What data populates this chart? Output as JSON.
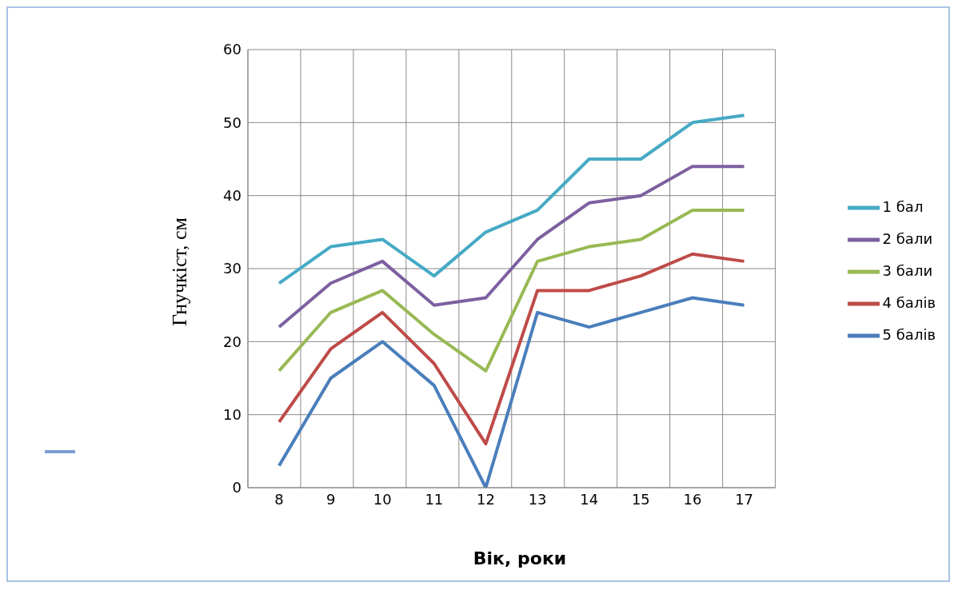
{
  "chart_data": {
    "type": "line",
    "xlabel": "Вік, роки",
    "ylabel": "Гнучкіст, см",
    "categories": [
      "8",
      "9",
      "10",
      "11",
      "12",
      "13",
      "14",
      "15",
      "16",
      "17"
    ],
    "ylim": [
      0,
      60
    ],
    "yticks": [
      0,
      10,
      20,
      30,
      40,
      50,
      60
    ],
    "grid": true,
    "legend": "right",
    "marker": "none",
    "line_style": "solid",
    "series": [
      {
        "name": "5 балів",
        "color": "#4a7ebb",
        "values": [
          3,
          15,
          20,
          14,
          0,
          24,
          22,
          24,
          26,
          25
        ]
      },
      {
        "name": "4 балів",
        "color": "#be4b48",
        "values": [
          9,
          19,
          24,
          17,
          6,
          27,
          27,
          29,
          32,
          31
        ]
      },
      {
        "name": "3 бали",
        "color": "#98b954",
        "values": [
          16,
          24,
          27,
          21,
          16,
          31,
          33,
          34,
          38,
          38
        ]
      },
      {
        "name": "2 бали",
        "color": "#7d60a0",
        "values": [
          22,
          28,
          31,
          25,
          26,
          34,
          39,
          40,
          44,
          44
        ]
      },
      {
        "name": "1 бал",
        "color": "#46aac5",
        "values": [
          28,
          33,
          34,
          29,
          35,
          38,
          45,
          45,
          50,
          51
        ]
      }
    ]
  }
}
